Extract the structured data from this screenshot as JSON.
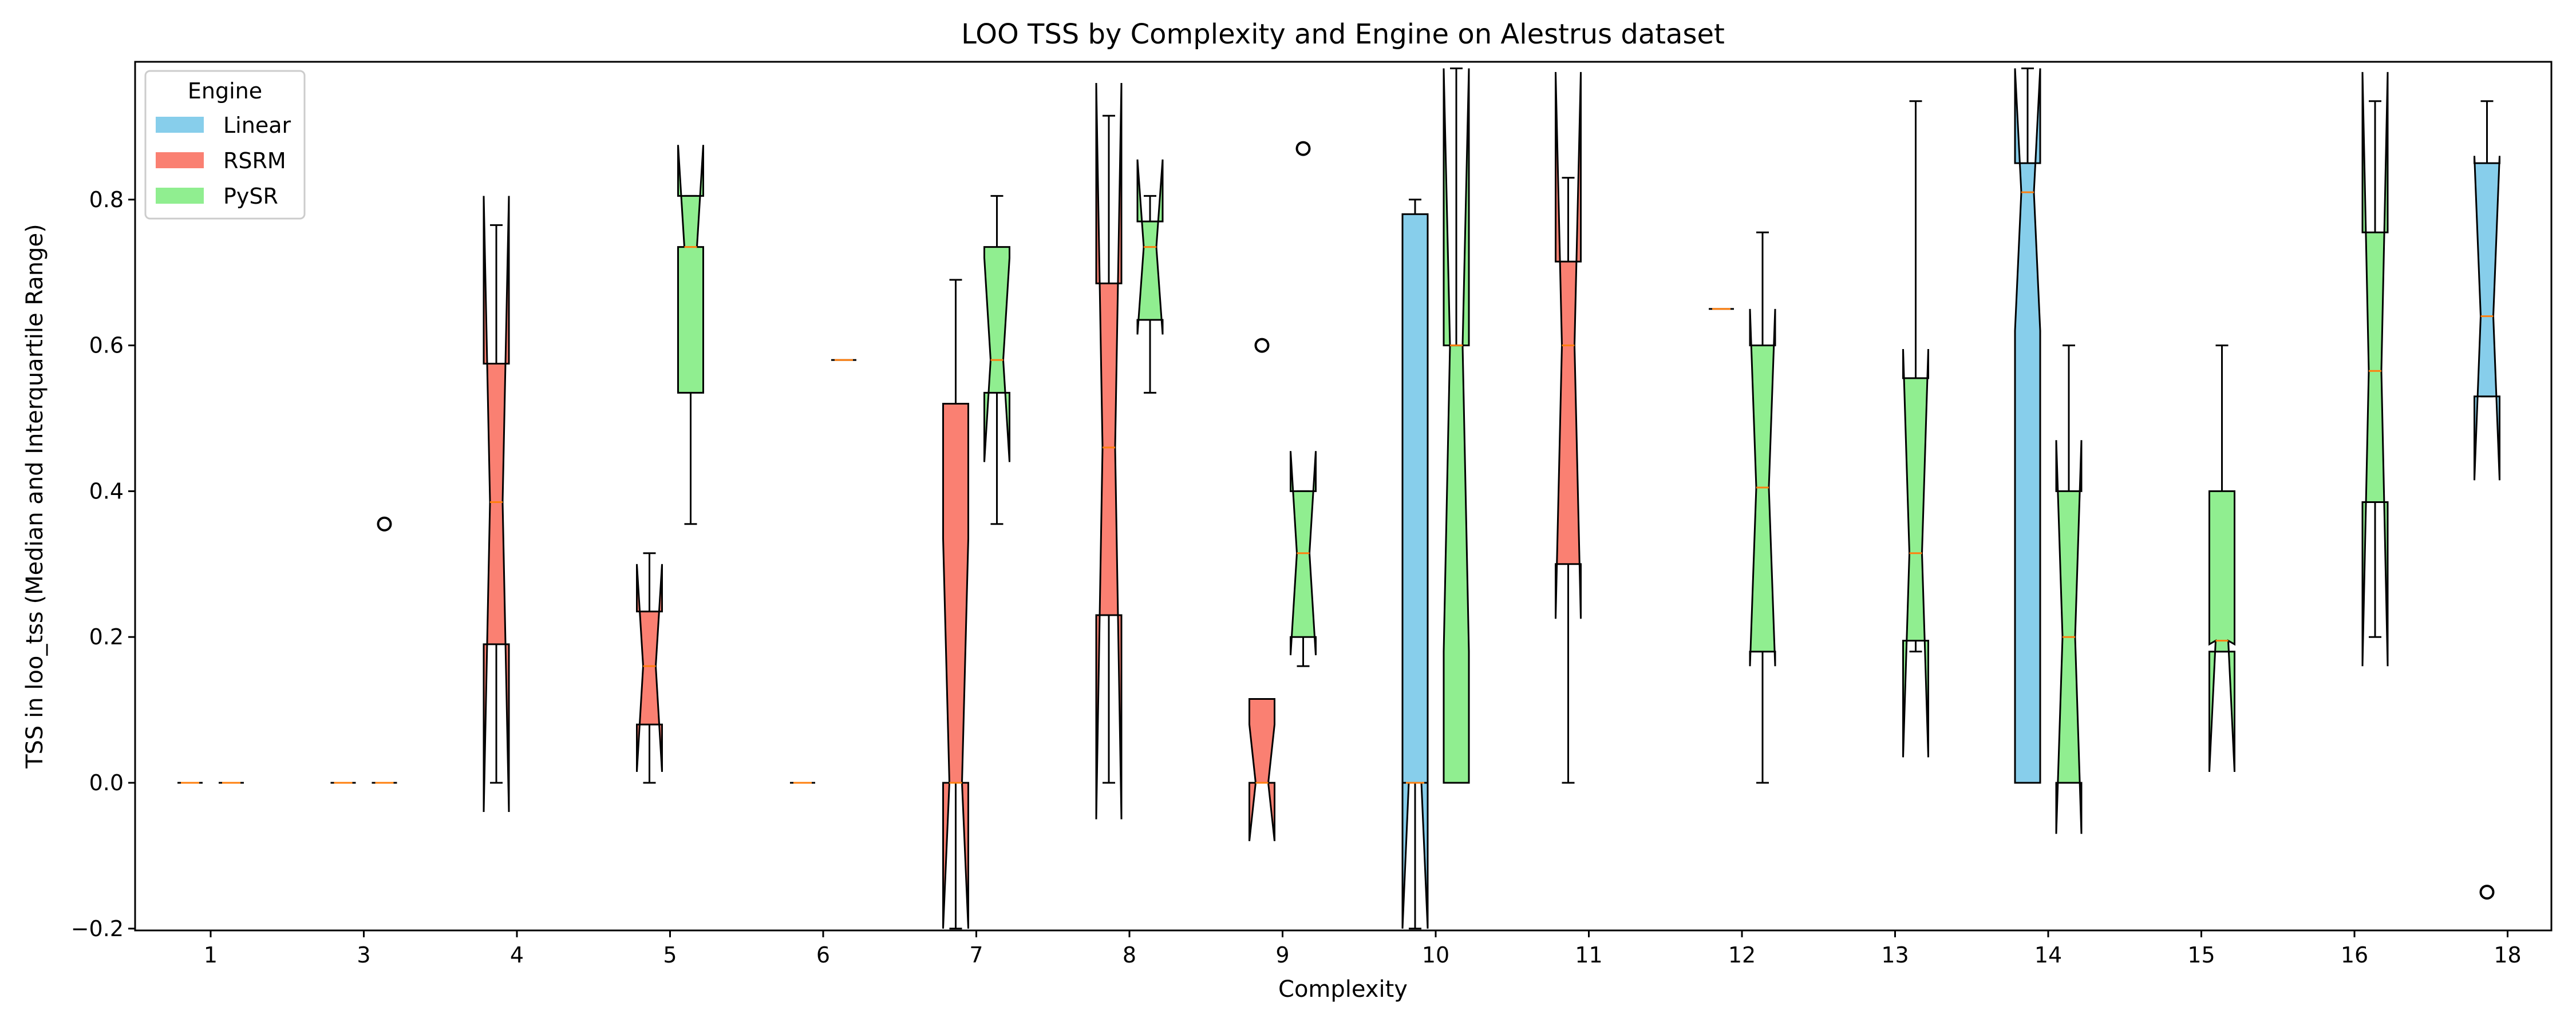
{
  "chart_data": {
    "type": "box",
    "title": "LOO TSS by Complexity and Engine on Alestrus dataset",
    "xlabel": "Complexity",
    "ylabel": "TSS in loo_tss (Median and Interquartile Range)",
    "ylim": [
      -0.2,
      0.98
    ],
    "yticks": [
      "−0.2",
      "0.0",
      "0.2",
      "0.4",
      "0.6",
      "0.8"
    ],
    "ytick_values": [
      -0.2,
      0.0,
      0.2,
      0.4,
      0.6,
      0.8
    ],
    "categories": [
      "1",
      "3",
      "4",
      "5",
      "6",
      "7",
      "8",
      "9",
      "10",
      "11",
      "12",
      "13",
      "14",
      "15",
      "16",
      "18"
    ],
    "grid": false,
    "notched": true,
    "legend": {
      "title": "Engine",
      "position": "top-left",
      "entries": [
        {
          "name": "Linear",
          "color": "#87ceeb"
        },
        {
          "name": "RSRM",
          "color": "#fa8072"
        },
        {
          "name": "PySR",
          "color": "#90ee90"
        }
      ]
    },
    "series": [
      {
        "name": "Linear",
        "color": "#87ceeb",
        "boxes": [
          {
            "category": "10",
            "q1": 0.0,
            "median": 0.0,
            "q3": 0.78,
            "whislo": -0.2,
            "whishi": 0.8,
            "notch_lo": -0.2,
            "notch_hi": 0.0
          },
          {
            "category": "14",
            "q1": 0.0,
            "median": 0.81,
            "q3": 0.85,
            "whislo": 0.0,
            "whishi": 0.98,
            "notch_lo": 0.62,
            "notch_hi": 0.98
          },
          {
            "category": "18",
            "q1": 0.53,
            "median": 0.64,
            "q3": 0.85,
            "whislo": 0.53,
            "whishi": 0.935,
            "notch_lo": 0.415,
            "notch_hi": 0.86,
            "fliers": [
              -0.15
            ]
          }
        ]
      },
      {
        "name": "RSRM",
        "color": "#fa8072",
        "boxes": [
          {
            "category": "1",
            "q1": 0.0,
            "median": 0.0,
            "q3": 0.0,
            "whislo": 0.0,
            "whishi": 0.0
          },
          {
            "category": "3",
            "q1": 0.0,
            "median": 0.0,
            "q3": 0.0,
            "whislo": 0.0,
            "whishi": 0.0
          },
          {
            "category": "4",
            "q1": 0.19,
            "median": 0.385,
            "q3": 0.575,
            "whislo": 0.0,
            "whishi": 0.765,
            "notch_lo": -0.04,
            "notch_hi": 0.805
          },
          {
            "category": "5",
            "q1": 0.08,
            "median": 0.16,
            "q3": 0.235,
            "whislo": 0.0,
            "whishi": 0.315,
            "notch_lo": 0.015,
            "notch_hi": 0.3
          },
          {
            "category": "6",
            "q1": 0.0,
            "median": 0.0,
            "q3": 0.0,
            "whislo": 0.0,
            "whishi": 0.0
          },
          {
            "category": "7",
            "q1": 0.0,
            "median": 0.0,
            "q3": 0.52,
            "whislo": -0.2,
            "whishi": 0.69,
            "notch_lo": -0.2,
            "notch_hi": 0.335
          },
          {
            "category": "8",
            "q1": 0.23,
            "median": 0.46,
            "q3": 0.685,
            "whislo": 0.0,
            "whishi": 0.915,
            "notch_lo": -0.05,
            "notch_hi": 0.96
          },
          {
            "category": "9",
            "q1": 0.0,
            "median": 0.0,
            "q3": 0.115,
            "whislo": 0.0,
            "whishi": 0.115,
            "notch_lo": -0.08,
            "notch_hi": 0.08,
            "fliers": [
              0.6
            ]
          },
          {
            "category": "10",
            "q1": 0.0,
            "median": 0.0,
            "q3": 0.0,
            "whislo": 0.0,
            "whishi": 0.0
          },
          {
            "category": "11",
            "q1": 0.3,
            "median": 0.6,
            "q3": 0.715,
            "whislo": 0.0,
            "whishi": 0.83,
            "notch_lo": 0.225,
            "notch_hi": 0.975
          },
          {
            "category": "12",
            "q1": 0.65,
            "median": 0.65,
            "q3": 0.65,
            "whislo": 0.65,
            "whishi": 0.65
          }
        ]
      },
      {
        "name": "PySR",
        "color": "#90ee90",
        "boxes": [
          {
            "category": "1",
            "q1": 0.0,
            "median": 0.0,
            "q3": 0.0,
            "whislo": 0.0,
            "whishi": 0.0
          },
          {
            "category": "3",
            "q1": 0.0,
            "median": 0.0,
            "q3": 0.0,
            "whislo": 0.0,
            "whishi": 0.0,
            "fliers": [
              0.355
            ]
          },
          {
            "category": "5",
            "q1": 0.535,
            "median": 0.735,
            "q3": 0.805,
            "whislo": 0.355,
            "whishi": 0.805,
            "notch_lo": 0.735,
            "notch_hi": 0.875
          },
          {
            "category": "6",
            "q1": 0.58,
            "median": 0.58,
            "q3": 0.58,
            "whislo": 0.58,
            "whishi": 0.58
          },
          {
            "category": "7",
            "q1": 0.535,
            "median": 0.58,
            "q3": 0.735,
            "whislo": 0.355,
            "whishi": 0.805,
            "notch_lo": 0.44,
            "notch_hi": 0.72
          },
          {
            "category": "8",
            "q1": 0.635,
            "median": 0.735,
            "q3": 0.77,
            "whislo": 0.535,
            "whishi": 0.805,
            "notch_lo": 0.615,
            "notch_hi": 0.855
          },
          {
            "category": "9",
            "q1": 0.2,
            "median": 0.315,
            "q3": 0.4,
            "whislo": 0.16,
            "whishi": 0.4,
            "notch_lo": 0.175,
            "notch_hi": 0.455,
            "fliers": [
              0.87
            ]
          },
          {
            "category": "10",
            "q1": 0.0,
            "median": 0.6,
            "q3": 0.6,
            "whislo": 0.0,
            "whishi": 0.98,
            "notch_lo": 0.18,
            "notch_hi": 0.98
          },
          {
            "category": "12",
            "q1": 0.18,
            "median": 0.405,
            "q3": 0.6,
            "whislo": 0.0,
            "whishi": 0.755,
            "notch_lo": 0.16,
            "notch_hi": 0.65
          },
          {
            "category": "13",
            "q1": 0.195,
            "median": 0.315,
            "q3": 0.555,
            "whislo": 0.18,
            "whishi": 0.935,
            "notch_lo": 0.035,
            "notch_hi": 0.595
          },
          {
            "category": "14",
            "q1": 0.0,
            "median": 0.2,
            "q3": 0.4,
            "whislo": 0.0,
            "whishi": 0.6,
            "notch_lo": -0.07,
            "notch_hi": 0.47
          },
          {
            "category": "15",
            "q1": 0.18,
            "median": 0.195,
            "q3": 0.4,
            "whislo": 0.18,
            "whishi": 0.6,
            "notch_lo": 0.015,
            "notch_hi": 0.19
          },
          {
            "category": "16",
            "q1": 0.385,
            "median": 0.565,
            "q3": 0.755,
            "whislo": 0.2,
            "whishi": 0.935,
            "notch_lo": 0.16,
            "notch_hi": 0.975
          }
        ]
      }
    ]
  }
}
